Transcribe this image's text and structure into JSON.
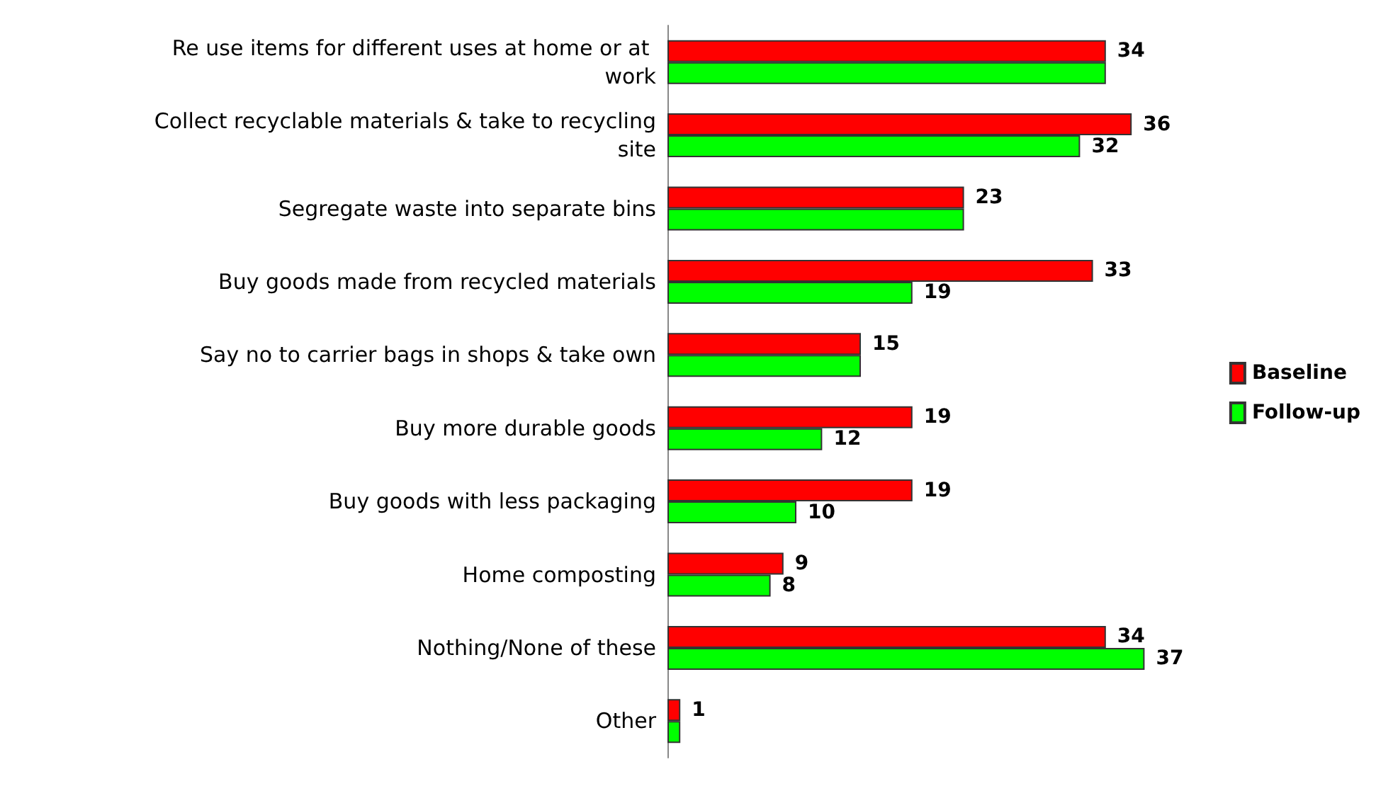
{
  "chart_data": {
    "type": "bar",
    "orientation": "horizontal",
    "categories": [
      "Re use items for different uses at home or at work",
      "Collect recyclable materials & take to recycling site",
      "Segregate waste into separate bins",
      "Buy goods made from recycled materials",
      "Say no to carrier bags in shops & take own",
      "Buy more durable goods",
      "Buy goods with less packaging",
      "Home composting",
      "Nothing/None of these",
      "Other"
    ],
    "series": [
      {
        "name": "Baseline",
        "color": "#ff0000",
        "values": [
          34,
          36,
          23,
          33,
          15,
          19,
          19,
          9,
          34,
          1
        ],
        "value_labels": [
          "34",
          "36",
          "23",
          "33",
          "15",
          "19",
          "19",
          "9",
          "34",
          "1"
        ]
      },
      {
        "name": "Follow-up",
        "color": "#00ff00",
        "values": [
          34,
          32,
          23,
          19,
          15,
          12,
          10,
          8,
          37,
          1
        ],
        "value_labels": [
          null,
          "32",
          null,
          "19",
          null,
          "12",
          "10",
          "8",
          "37",
          null
        ]
      }
    ],
    "legend": "right",
    "tick_labels": "y"
  }
}
